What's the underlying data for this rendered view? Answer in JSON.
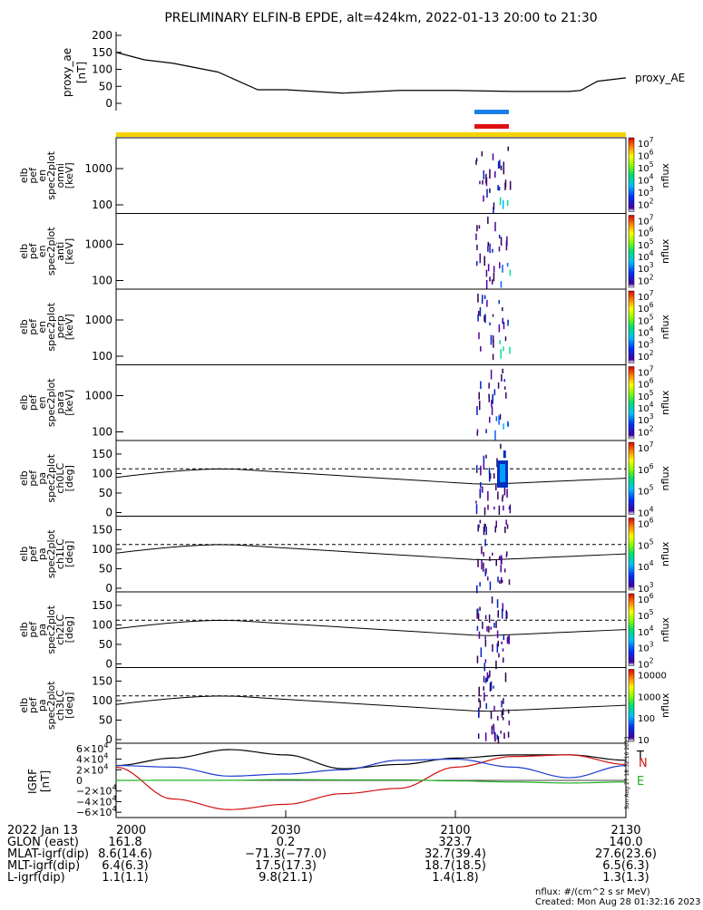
{
  "title": "PRELIMINARY ELFIN-B EPDE, alt=424km, 2022-01-13 20:00 to 21:30",
  "colors": {
    "black": "#000000",
    "bar_blue": "#1a7fe8",
    "bar_red": "#e01010",
    "bar_yellow": "#f5d300",
    "igrf_N": "#d01010",
    "igrf_E": "#20b020",
    "igrf_T": "#000000",
    "igrf_blue": "#1c3ccc",
    "green_line": "#20b020"
  },
  "proxy_ae": {
    "ylabel": "proxy_ae\n[nT]",
    "legend": "proxy_AE",
    "yticks": [
      "200",
      "150",
      "100",
      "50",
      "0"
    ]
  },
  "spec_panels": [
    {
      "ylabel": [
        "elb",
        "pef",
        "en",
        "spec2plot",
        "omni",
        "[keV]"
      ],
      "yticks": [
        "1000",
        "100"
      ],
      "cb_ticks": [
        "10^7",
        "10^6",
        "10^5",
        "10^4",
        "10^3",
        "10^2"
      ],
      "cb_label": "nflux"
    },
    {
      "ylabel": [
        "elb",
        "pef",
        "en",
        "spec2plot",
        "anti",
        "[keV]"
      ],
      "yticks": [
        "1000",
        "100"
      ],
      "cb_ticks": [
        "10^7",
        "10^6",
        "10^5",
        "10^4",
        "10^3",
        "10^2"
      ],
      "cb_label": "nflux"
    },
    {
      "ylabel": [
        "elb",
        "pef",
        "en",
        "spec2plot",
        "perp",
        "[keV]"
      ],
      "yticks": [
        "1000",
        "100"
      ],
      "cb_ticks": [
        "10^7",
        "10^6",
        "10^5",
        "10^4",
        "10^3",
        "10^2"
      ],
      "cb_label": "nflux"
    },
    {
      "ylabel": [
        "elb",
        "pef",
        "en",
        "spec2plot",
        "para",
        "[keV]"
      ],
      "yticks": [
        "1000",
        "100"
      ],
      "cb_ticks": [
        "10^7",
        "10^6",
        "10^5",
        "10^4",
        "10^3",
        "10^2"
      ],
      "cb_label": "nflux"
    }
  ],
  "pa_panels": [
    {
      "ylabel": [
        "elb",
        "pef",
        "pa",
        "spec2plot",
        "ch0LC",
        "[deg]"
      ],
      "yticks": [
        "150",
        "100",
        "50",
        "0"
      ],
      "cb_ticks": [
        "10^7",
        "10^6",
        "10^5",
        "10^4"
      ],
      "cb_label": "nflux"
    },
    {
      "ylabel": [
        "elb",
        "pef",
        "pa",
        "spec2plot",
        "ch1LC",
        "[deg]"
      ],
      "yticks": [
        "150",
        "100",
        "50",
        "0"
      ],
      "cb_ticks": [
        "10^6",
        "10^5",
        "10^4",
        "10^3"
      ],
      "cb_label": "nflux"
    },
    {
      "ylabel": [
        "elb",
        "pef",
        "pa",
        "spec2plot",
        "ch2LC",
        "[deg]"
      ],
      "yticks": [
        "150",
        "100",
        "50",
        "0"
      ],
      "cb_ticks": [
        "10^6",
        "10^5",
        "10^4",
        "10^3",
        "10^2"
      ],
      "cb_label": "nflux"
    },
    {
      "ylabel": [
        "elb",
        "pef",
        "pa",
        "spec2plot",
        "ch3LC",
        "[deg]"
      ],
      "yticks": [
        "150",
        "100",
        "50",
        "0"
      ],
      "cb_ticks": [
        "10000",
        "1000",
        "100",
        "10"
      ],
      "cb_label": "nflux"
    }
  ],
  "igrf": {
    "ylabel": "IGRF\n[nT]",
    "yticks": [
      "6×10^4",
      "4×10^4",
      "2×10^4",
      "0",
      "−2×10^4",
      "−4×10^4",
      "−6×10^4"
    ],
    "legend": [
      "T",
      "N",
      "E"
    ]
  },
  "xaxis": {
    "date": "2022 Jan 13",
    "tick_labels": [
      "2000",
      "2030",
      "2100",
      "2130"
    ],
    "rows": [
      {
        "label": "GLON (east)",
        "values": [
          "161.8",
          "0.2",
          "323.7",
          "140.0"
        ]
      },
      {
        "label": "MLAT-igrf(dip)",
        "values": [
          "8.6(14.6)",
          "−71.3(−77.0)",
          "32.7(39.4)",
          "27.6(23.6)"
        ]
      },
      {
        "label": "MLT-igrf(dip)",
        "values": [
          "6.4(6.3)",
          "17.5(17.3)",
          "18.7(18.5)",
          "6.5(6.3)"
        ]
      },
      {
        "label": "L-igrf(dip)",
        "values": [
          "1.1(1.1)",
          "9.8(21.1)",
          "1.4(1.8)",
          "1.3(1.3)"
        ]
      }
    ]
  },
  "footer": {
    "units": "nflux: #/(cm^2 s sr MeV)",
    "created": "Created: Mon Aug 28 01:32:16 2023",
    "side_stamp": "Sun Aug 27 18:32:16 2023"
  },
  "chart_data": {
    "type": "line",
    "title": "PRELIMINARY ELFIN-B EPDE, alt=424km, 2022-01-13 20:00 to 21:30",
    "x_range": [
      "20:00",
      "21:30"
    ],
    "proxy_ae_series": {
      "name": "proxy_AE",
      "ylim": [
        0,
        200
      ],
      "x_min": [
        0,
        5,
        10,
        18,
        25,
        27,
        30,
        40,
        50,
        60,
        70,
        75,
        80,
        82,
        85,
        90
      ],
      "y": [
        150,
        128,
        118,
        92,
        40,
        40,
        40,
        30,
        38,
        38,
        35,
        35,
        35,
        38,
        65,
        75
      ]
    },
    "igrf_series": [
      {
        "name": "T",
        "ylim": [
          -60000,
          60000
        ],
        "x_min": [
          0,
          10,
          20,
          30,
          40,
          50,
          60,
          70,
          80,
          90
        ],
        "y": [
          28000,
          42000,
          58000,
          48000,
          22000,
          30000,
          42000,
          48000,
          48000,
          38000
        ]
      },
      {
        "name": "N",
        "x_min": [
          0,
          10,
          20,
          30,
          40,
          50,
          60,
          70,
          80,
          90
        ],
        "y": [
          25000,
          -35000,
          -55000,
          -45000,
          -25000,
          -15000,
          25000,
          45000,
          48000,
          30000
        ]
      },
      {
        "name": "blue",
        "x_min": [
          0,
          10,
          20,
          30,
          40,
          50,
          60,
          70,
          80,
          90
        ],
        "y": [
          28000,
          25000,
          8000,
          12000,
          20000,
          38000,
          40000,
          25000,
          5000,
          28000
        ]
      },
      {
        "name": "E",
        "x_min": [
          0,
          10,
          20,
          30,
          40,
          50,
          60,
          70,
          80,
          90
        ],
        "y": [
          0,
          200,
          200,
          1500,
          1000,
          1000,
          -1000,
          -3000,
          -5000,
          -3000
        ]
      }
    ]
  }
}
